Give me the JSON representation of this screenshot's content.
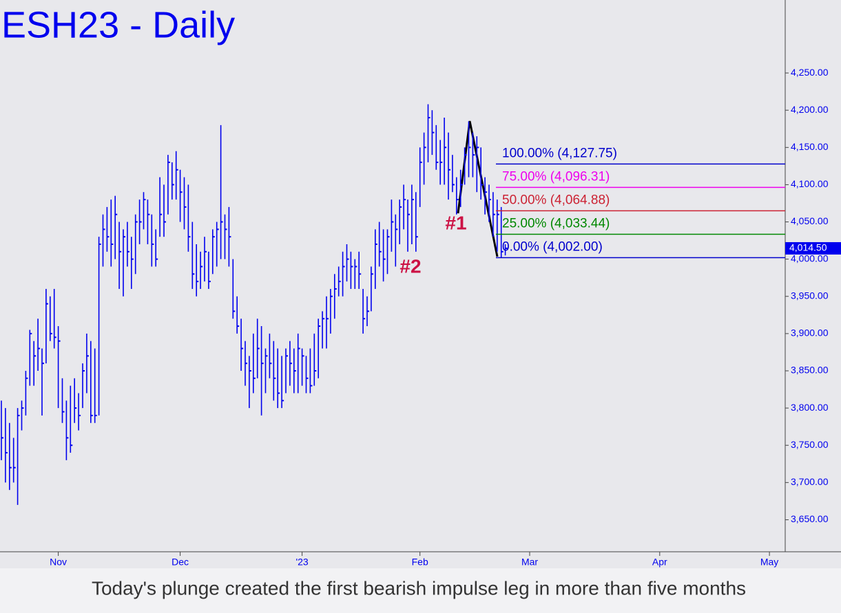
{
  "chart_data": {
    "type": "ohlc",
    "title": "ESH23 - Daily",
    "caption": "Today's plunge created the first bearish impulse leg in more than five months",
    "color": "#0000ee",
    "ylim": [
      3607,
      4348
    ],
    "yticks": [
      {
        "value": 3650,
        "label": "3,650.00"
      },
      {
        "value": 3700,
        "label": "3,700.00"
      },
      {
        "value": 3750,
        "label": "3,750.00"
      },
      {
        "value": 3800,
        "label": "3,800.00"
      },
      {
        "value": 3850,
        "label": "3,850.00"
      },
      {
        "value": 3900,
        "label": "3,900.00"
      },
      {
        "value": 3950,
        "label": "3,950.00"
      },
      {
        "value": 4000,
        "label": "4,000.00"
      },
      {
        "value": 4050,
        "label": "4,050.00"
      },
      {
        "value": 4100,
        "label": "4,100.00"
      },
      {
        "value": 4150,
        "label": "4,150.00"
      },
      {
        "value": 4200,
        "label": "4,200.00"
      },
      {
        "value": 4250,
        "label": "4,250.00"
      }
    ],
    "last_price": {
      "value": 4014.5,
      "label": "4,014.50"
    },
    "categories": [
      null,
      null,
      null,
      null,
      null,
      null,
      null,
      null,
      null,
      null,
      null,
      null,
      null,
      null,
      "Nov",
      null,
      null,
      null,
      null,
      null,
      null,
      null,
      null,
      null,
      null,
      null,
      null,
      null,
      null,
      null,
      null,
      null,
      null,
      null,
      null,
      null,
      null,
      null,
      null,
      null,
      null,
      null,
      null,
      null,
      "Dec",
      null,
      null,
      null,
      null,
      null,
      null,
      null,
      null,
      null,
      null,
      null,
      null,
      null,
      null,
      null,
      null,
      null,
      null,
      null,
      null,
      null,
      null,
      null,
      null,
      null,
      null,
      null,
      null,
      null,
      "'23",
      null,
      null,
      null,
      null,
      null,
      null,
      null,
      null,
      null,
      null,
      null,
      null,
      null,
      null,
      null,
      null,
      null,
      null,
      null,
      null,
      null,
      null,
      null,
      null,
      null,
      null,
      null,
      null,
      "Feb",
      null,
      null,
      null,
      null,
      null,
      null,
      null,
      null,
      null,
      null,
      null,
      null,
      null,
      null,
      null,
      null,
      null,
      null,
      null,
      null,
      null,
      null,
      null,
      null,
      null,
      null,
      "Mar",
      null,
      null,
      null,
      null,
      null,
      null,
      null,
      null,
      null,
      null,
      null,
      null,
      null,
      null,
      null,
      null,
      null,
      null,
      null,
      null,
      null,
      null,
      null,
      null,
      null,
      null,
      null,
      null,
      null,
      null,
      null,
      "Apr",
      null,
      null,
      null,
      null,
      null,
      null,
      null,
      null,
      null,
      null,
      null,
      null,
      null,
      null,
      null,
      null,
      null,
      null,
      null,
      null,
      null,
      null,
      null,
      null,
      null,
      null,
      "May",
      null,
      null,
      null,
      null
    ],
    "high": [
      3810,
      3800,
      3780,
      3760,
      3800,
      3810,
      3850,
      3905,
      3890,
      3920,
      3880,
      3960,
      3950,
      3960,
      3910,
      3840,
      3810,
      3830,
      3840,
      3820,
      3860,
      3900,
      3890,
      3880,
      4030,
      4060,
      4070,
      4080,
      4085,
      4050,
      4040,
      4050,
      4030,
      4060,
      4080,
      4090,
      4080,
      4060,
      4040,
      4110,
      4100,
      4140,
      4130,
      4145,
      4120,
      4110,
      4100,
      4050,
      4020,
      4010,
      4030,
      4010,
      4040,
      4050,
      4180,
      4060,
      4070,
      4000,
      3950,
      3920,
      3890,
      3870,
      3900,
      3920,
      3910,
      3880,
      3900,
      3890,
      3880,
      3870,
      3880,
      3890,
      3880,
      3900,
      3880,
      3870,
      3880,
      3900,
      3920,
      3930,
      3950,
      3960,
      3980,
      3990,
      4010,
      4020,
      4010,
      4000,
      4010,
      3960,
      3950,
      3990,
      4040,
      4050,
      4040,
      4040,
      4080,
      4060,
      4080,
      4100,
      4080,
      4100,
      4090,
      4150,
      4170,
      4208,
      4200,
      4180,
      4160,
      4190,
      4170,
      4140,
      4110,
      4120,
      4150,
      4185,
      4170,
      4165,
      4150,
      4110,
      4100,
      4090,
      4080,
      4070,
      4020,
      null,
      null,
      null,
      null,
      null,
      null,
      null,
      null,
      null,
      null,
      null,
      null,
      null,
      null,
      null,
      null,
      null,
      null,
      null,
      null,
      null,
      null,
      null,
      null,
      null,
      null,
      null,
      null,
      null,
      null,
      null,
      null,
      null,
      null,
      null,
      null,
      null,
      null,
      null,
      null,
      null,
      null,
      null,
      null,
      null,
      null,
      null,
      null,
      null,
      null,
      null,
      null,
      null,
      null,
      null,
      null,
      null,
      null,
      null,
      null,
      null,
      null,
      null,
      null,
      null,
      null,
      null,
      null,
      null
    ],
    "low": [
      3730,
      3700,
      3690,
      3700,
      3670,
      3770,
      3790,
      3830,
      3830,
      3850,
      3790,
      3860,
      3890,
      3880,
      3800,
      3780,
      3730,
      3740,
      3780,
      3770,
      3800,
      3820,
      3780,
      3780,
      3790,
      3990,
      4010,
      3990,
      4000,
      3960,
      3950,
      3990,
      3960,
      3980,
      4020,
      4040,
      4020,
      3990,
      3990,
      4030,
      4030,
      4060,
      4080,
      4080,
      4050,
      4040,
      4010,
      3960,
      3950,
      3960,
      3970,
      3960,
      3980,
      3990,
      4000,
      4000,
      3990,
      3920,
      3900,
      3850,
      3830,
      3800,
      3820,
      3840,
      3790,
      3820,
      3840,
      3810,
      3800,
      3800,
      3820,
      3830,
      3820,
      3820,
      3830,
      3820,
      3820,
      3830,
      3840,
      3880,
      3880,
      3900,
      3920,
      3950,
      3950,
      3970,
      3960,
      3960,
      3960,
      3900,
      3910,
      3930,
      3960,
      3990,
      3970,
      3980,
      4010,
      3990,
      4020,
      4040,
      4010,
      4020,
      4010,
      4070,
      4100,
      4130,
      4140,
      4120,
      4100,
      4100,
      4080,
      4090,
      4060,
      4070,
      4100,
      4110,
      4110,
      4090,
      4080,
      4060,
      4050,
      4030,
      4010,
      4002,
      4005,
      null,
      null,
      null,
      null,
      null,
      null,
      null,
      null,
      null,
      null,
      null,
      null,
      null,
      null,
      null,
      null,
      null,
      null,
      null,
      null,
      null,
      null,
      null,
      null,
      null,
      null,
      null,
      null,
      null,
      null,
      null,
      null,
      null,
      null,
      null,
      null,
      null,
      null,
      null,
      null,
      null,
      null,
      null,
      null,
      null,
      null,
      null,
      null,
      null,
      null,
      null,
      null,
      null,
      null,
      null,
      null,
      null,
      null,
      null,
      null,
      null,
      null,
      null,
      null,
      null,
      null,
      null,
      null,
      null
    ],
    "close": [
      3760,
      3740,
      3720,
      3720,
      3790,
      3800,
      3840,
      3900,
      3870,
      3880,
      3860,
      3940,
      3900,
      3895,
      3890,
      3795,
      3760,
      3750,
      3800,
      3790,
      3850,
      3870,
      3790,
      3790,
      4020,
      4040,
      4030,
      4020,
      4060,
      4010,
      4030,
      4010,
      4000,
      4050,
      4050,
      4080,
      4060,
      4020,
      4000,
      4060,
      4050,
      4130,
      4100,
      4120,
      4090,
      4070,
      4030,
      3980,
      3970,
      3990,
      4010,
      3970,
      4030,
      4040,
      4050,
      4040,
      4030,
      3930,
      3910,
      3880,
      3860,
      3850,
      3840,
      3880,
      3860,
      3870,
      3860,
      3840,
      3820,
      3810,
      3870,
      3860,
      3850,
      3880,
      3870,
      3840,
      3830,
      3850,
      3910,
      3920,
      3920,
      3950,
      3960,
      3970,
      3990,
      4000,
      3990,
      3990,
      3980,
      3920,
      3930,
      3980,
      4020,
      4010,
      4000,
      4030,
      4050,
      4040,
      4070,
      4080,
      4060,
      4080,
      4030,
      4130,
      4150,
      4190,
      4170,
      4130,
      4130,
      4150,
      4120,
      4100,
      4080,
      4100,
      4140,
      4150,
      4140,
      4150,
      4100,
      4090,
      4080,
      4060,
      4060,
      4010,
      4014.5,
      null,
      null,
      null,
      null,
      null,
      null,
      null,
      null,
      null,
      null,
      null,
      null,
      null,
      null,
      null,
      null,
      null,
      null,
      null,
      null,
      null,
      null,
      null,
      null,
      null,
      null,
      null,
      null,
      null,
      null,
      null,
      null,
      null,
      null,
      null,
      null,
      null,
      null,
      null,
      null,
      null,
      null,
      null,
      null,
      null,
      null,
      null,
      null,
      null,
      null,
      null,
      null,
      null,
      null,
      null,
      null,
      null,
      null,
      null,
      null,
      null,
      null,
      null,
      null,
      null,
      null,
      null,
      null,
      null
    ],
    "levels": [
      {
        "label": "100.00% (4,127.75)",
        "value": 4127.75,
        "color": "#0000cc"
      },
      {
        "label": "75.00% (4,096.31)",
        "value": 4096.31,
        "color": "#ee00ee"
      },
      {
        "label": "50.00% (4,064.88)",
        "value": 4064.88,
        "color": "#cc2233"
      },
      {
        "label": "25.00% (4,033.44)",
        "value": 4033.44,
        "color": "#008800"
      },
      {
        "label": "0.00% (4,002.00)",
        "value": 4002.0,
        "color": "#0000cc"
      }
    ],
    "annotations": [
      "#1",
      "#2"
    ]
  }
}
